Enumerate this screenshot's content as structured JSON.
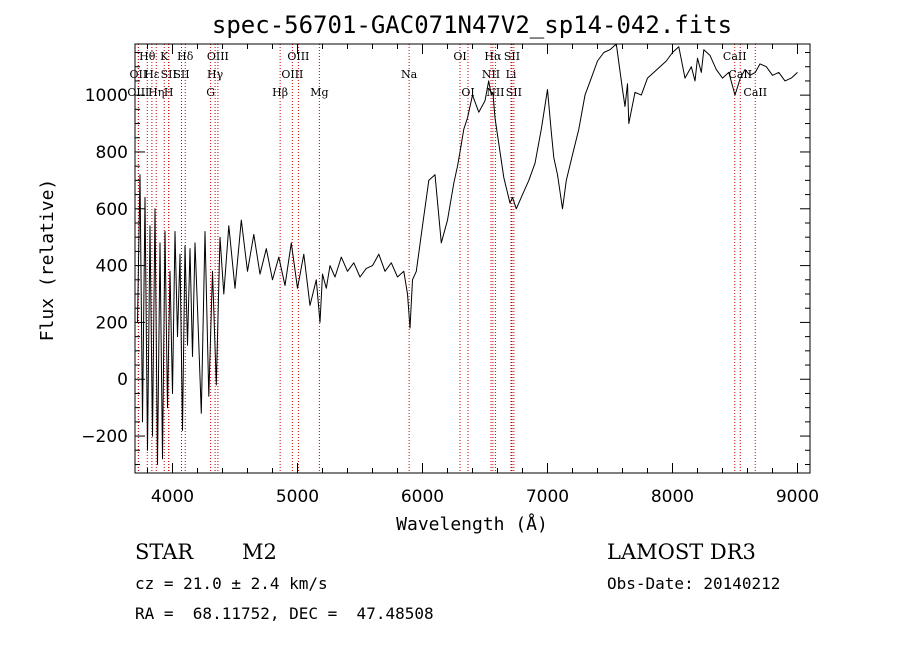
{
  "chart_data": {
    "type": "line",
    "title": "spec-56701-GAC071N47V2_sp14-042.fits",
    "xlabel": "Wavelength (Å)",
    "ylabel": "Flux (relative)",
    "xlim": [
      3700,
      9100
    ],
    "ylim": [
      -330,
      1180
    ],
    "xticks": [
      4000,
      5000,
      6000,
      7000,
      8000,
      9000
    ],
    "yticks": [
      -200,
      0,
      200,
      400,
      600,
      800,
      1000
    ],
    "series": [
      {
        "name": "spectrum",
        "x": [
          3720,
          3740,
          3760,
          3780,
          3800,
          3820,
          3840,
          3860,
          3880,
          3900,
          3920,
          3940,
          3960,
          3980,
          4000,
          4020,
          4040,
          4060,
          4080,
          4100,
          4120,
          4140,
          4160,
          4180,
          4200,
          4230,
          4260,
          4290,
          4320,
          4350,
          4380,
          4410,
          4450,
          4500,
          4550,
          4600,
          4650,
          4700,
          4750,
          4800,
          4850,
          4900,
          4950,
          5000,
          5050,
          5100,
          5150,
          5180,
          5200,
          5230,
          5260,
          5300,
          5350,
          5400,
          5450,
          5500,
          5550,
          5600,
          5650,
          5700,
          5750,
          5800,
          5850,
          5880,
          5900,
          5920,
          5950,
          6000,
          6050,
          6100,
          6150,
          6200,
          6250,
          6280,
          6300,
          6330,
          6360,
          6400,
          6450,
          6500,
          6530,
          6550,
          6563,
          6580,
          6600,
          6650,
          6700,
          6720,
          6750,
          6800,
          6850,
          6900,
          6950,
          7000,
          7030,
          7050,
          7080,
          7100,
          7120,
          7150,
          7200,
          7250,
          7300,
          7350,
          7400,
          7450,
          7500,
          7550,
          7600,
          7620,
          7640,
          7650,
          7700,
          7750,
          7800,
          7850,
          7900,
          7950,
          8000,
          8050,
          8100,
          8150,
          8180,
          8200,
          8230,
          8250,
          8300,
          8350,
          8400,
          8450,
          8500,
          8542,
          8580,
          8620,
          8662,
          8700,
          8750,
          8800,
          8850,
          8900,
          8950,
          9000
        ],
        "values": [
          200,
          720,
          -150,
          640,
          -250,
          540,
          -200,
          600,
          -300,
          480,
          -280,
          520,
          -100,
          380,
          -50,
          520,
          150,
          440,
          -180,
          470,
          120,
          460,
          80,
          480,
          250,
          -120,
          520,
          -60,
          380,
          -20,
          500,
          300,
          540,
          320,
          560,
          380,
          510,
          370,
          460,
          350,
          430,
          330,
          480,
          320,
          440,
          260,
          350,
          200,
          370,
          320,
          400,
          360,
          430,
          380,
          410,
          360,
          390,
          400,
          440,
          380,
          410,
          360,
          380,
          300,
          180,
          350,
          380,
          540,
          700,
          720,
          480,
          560,
          690,
          750,
          800,
          880,
          920,
          1000,
          940,
          980,
          1050,
          1000,
          1010,
          920,
          860,
          710,
          620,
          640,
          600,
          650,
          700,
          760,
          880,
          1020,
          870,
          780,
          720,
          660,
          600,
          700,
          790,
          880,
          1000,
          1060,
          1120,
          1150,
          1160,
          1180,
          1020,
          960,
          1040,
          900,
          1010,
          1000,
          1060,
          1080,
          1100,
          1120,
          1150,
          1170,
          1060,
          1100,
          1050,
          1130,
          1080,
          1160,
          1140,
          1090,
          1060,
          1080,
          1000,
          1060,
          1090,
          1070,
          1080,
          1110,
          1100,
          1070,
          1080,
          1050,
          1060,
          1080
        ]
      }
    ],
    "spectral_lines": [
      {
        "label": "Hθ",
        "wave": 3798,
        "row": 0
      },
      {
        "label": "OII",
        "wave": 3727,
        "row": 1
      },
      {
        "label": "OIII",
        "wave": 3727,
        "row": 2
      },
      {
        "label": "Hε",
        "wave": 3835,
        "row": 1
      },
      {
        "label": "Hη",
        "wave": 3870,
        "row": 2
      },
      {
        "label": "K",
        "wave": 3934,
        "row": 0
      },
      {
        "label": "SII",
        "wave": 3970,
        "row": 1
      },
      {
        "label": "H",
        "wave": 3969,
        "row": 2
      },
      {
        "label": "Hδ",
        "wave": 4102,
        "row": 0
      },
      {
        "label": "SII",
        "wave": 4072,
        "row": 1
      },
      {
        "label": "OIII",
        "wave": 4363,
        "row": 0
      },
      {
        "label": "Hγ",
        "wave": 4341,
        "row": 1
      },
      {
        "label": "G",
        "wave": 4305,
        "row": 2
      },
      {
        "label": "Hβ",
        "wave": 4861,
        "row": 2
      },
      {
        "label": "OIII",
        "wave": 5007,
        "row": 0
      },
      {
        "label": "OIII",
        "wave": 4959,
        "row": 1
      },
      {
        "label": "Mg",
        "wave": 5175,
        "row": 2
      },
      {
        "label": "Na",
        "wave": 5893,
        "row": 1
      },
      {
        "label": "OI",
        "wave": 6300,
        "row": 0
      },
      {
        "label": "OI",
        "wave": 6364,
        "row": 2
      },
      {
        "label": "Hα",
        "wave": 6563,
        "row": 0
      },
      {
        "label": "NII",
        "wave": 6548,
        "row": 1
      },
      {
        "label": "NII",
        "wave": 6583,
        "row": 2
      },
      {
        "label": "SII",
        "wave": 6716,
        "row": 0
      },
      {
        "label": "Li",
        "wave": 6708,
        "row": 1
      },
      {
        "label": "SII",
        "wave": 6731,
        "row": 2
      },
      {
        "label": "CaII",
        "wave": 8498,
        "row": 0
      },
      {
        "label": "CaII",
        "wave": 8542,
        "row": 1
      },
      {
        "label": "CaII",
        "wave": 8662,
        "row": 2
      }
    ]
  },
  "info": {
    "class": "STAR",
    "subclass": "M2",
    "survey": "LAMOST DR3",
    "cz": "cz = 21.0 ± 2.4 km/s",
    "obs_date": "Obs-Date: 20140212",
    "coords": "RA =  68.11752, DEC =  47.48508"
  },
  "colors": {
    "line": "#000000",
    "marker": "#cc0000"
  }
}
